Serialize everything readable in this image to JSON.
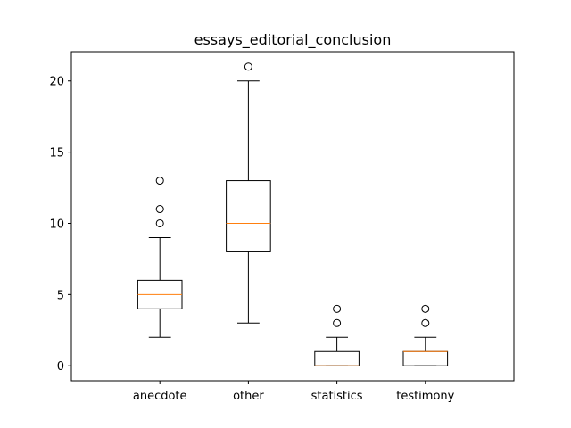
{
  "chart_data": {
    "type": "boxplot",
    "title": "essays_editorial_conclusion",
    "xlabel": "",
    "ylabel": "",
    "ylim": [
      -1.05,
      22.05
    ],
    "yticks": [
      0,
      5,
      10,
      15,
      20
    ],
    "grid": false,
    "categories": [
      "anecdote",
      "other",
      "statistics",
      "testimony"
    ],
    "boxes": [
      {
        "category": "anecdote",
        "whisker_low": 2,
        "q1": 4,
        "median": 5,
        "q3": 6,
        "whisker_high": 9,
        "fliers": [
          10,
          11,
          13
        ]
      },
      {
        "category": "other",
        "whisker_low": 3,
        "q1": 8,
        "median": 10,
        "q3": 13,
        "whisker_high": 20,
        "fliers": [
          21
        ]
      },
      {
        "category": "statistics",
        "whisker_low": 0,
        "q1": 0,
        "median": 0,
        "q3": 1,
        "whisker_high": 2,
        "fliers": [
          3,
          4
        ]
      },
      {
        "category": "testimony",
        "whisker_low": 0,
        "q1": 0,
        "median": 1,
        "q3": 1,
        "whisker_high": 2,
        "fliers": [
          3,
          4
        ]
      }
    ],
    "colors": {
      "box": "#000000",
      "median": "#ff7f0e",
      "flier": "#000000"
    }
  }
}
